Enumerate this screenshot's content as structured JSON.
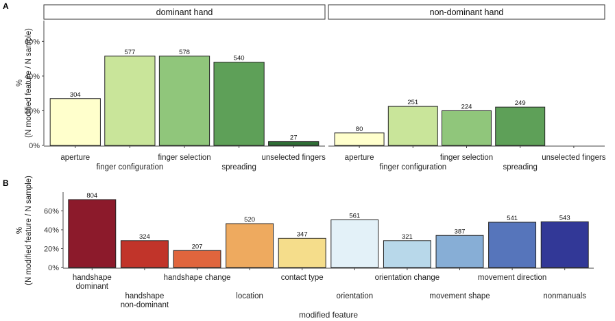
{
  "figure": {
    "panel_a_letter": "A",
    "panel_b_letter": "B"
  },
  "colors": {
    "panel_a": [
      "#ffffcc",
      "#c9e59a",
      "#90c67b",
      "#5ea058",
      "#2f6e36"
    ],
    "panel_b": [
      "#8c1a2b",
      "#c1342a",
      "#e0653d",
      "#eeaa5f",
      "#f5dd8b",
      "#e3f1f8",
      "#b8d8ea",
      "#87aed6",
      "#5675bb",
      "#323897"
    ]
  },
  "chart_data": [
    {
      "id": "panel-a",
      "type": "bar",
      "ylabel_lines": [
        "%",
        "(N modified feature / N sample)"
      ],
      "ylim": [
        0,
        0.72
      ],
      "yticks": [
        0,
        0.2,
        0.4,
        0.6
      ],
      "ytick_labels": [
        "0%",
        "20%",
        "40%",
        "60%"
      ],
      "grid": false,
      "categories": [
        "aperture",
        "finger configuration",
        "finger selection",
        "spreading",
        "unselected fingers"
      ],
      "facets": [
        {
          "label": "dominant hand",
          "values": [
            0.27,
            0.515,
            0.515,
            0.48,
            0.022
          ],
          "counts": [
            "304",
            "577",
            "578",
            "540",
            "27"
          ]
        },
        {
          "label": "non-dominant hand",
          "values": [
            0.072,
            0.225,
            0.2,
            0.221,
            null
          ],
          "counts": [
            "80",
            "251",
            "224",
            "249",
            ""
          ]
        }
      ]
    },
    {
      "id": "panel-b",
      "type": "bar",
      "xlabel": "modified feature",
      "ylabel_lines": [
        "%",
        "(N modified feature / N sample)"
      ],
      "ylim": [
        0,
        0.8
      ],
      "yticks": [
        0,
        0.2,
        0.4,
        0.6
      ],
      "ytick_labels": [
        "0%",
        "20%",
        "40%",
        "60%"
      ],
      "grid": false,
      "categories": [
        [
          "handshape",
          "dominant"
        ],
        [
          "handshape",
          "non-dominant"
        ],
        [
          "handshape change"
        ],
        [
          "location"
        ],
        [
          "contact type"
        ],
        [
          "orientation"
        ],
        [
          "orientation change"
        ],
        [
          "movement shape"
        ],
        [
          "movement direction"
        ],
        [
          "nonmanuals"
        ]
      ],
      "values": [
        0.72,
        0.285,
        0.18,
        0.465,
        0.31,
        0.505,
        0.285,
        0.34,
        0.48,
        0.485
      ],
      "counts": [
        "804",
        "324",
        "207",
        "520",
        "347",
        "561",
        "321",
        "387",
        "541",
        "543"
      ]
    }
  ]
}
